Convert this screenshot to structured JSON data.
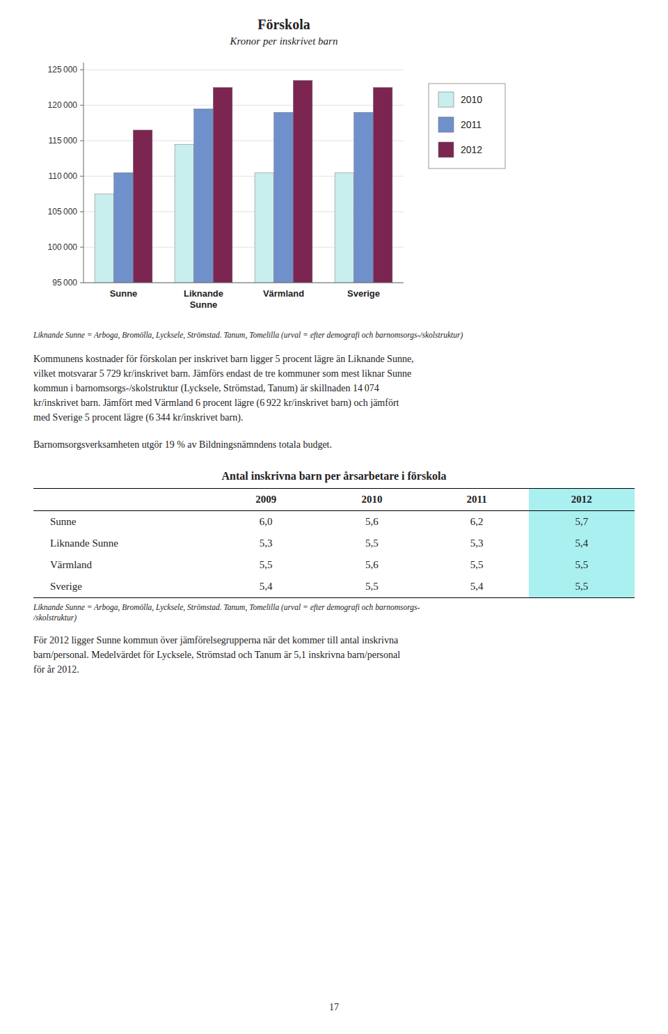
{
  "chart_data": [
    {
      "type": "bar",
      "title": "Förskola",
      "subtitle": "Kronor per inskrivet barn",
      "categories": [
        "Sunne",
        "Liknande\nSunne",
        "Värmland",
        "Sverige"
      ],
      "series": [
        {
          "name": "2010",
          "color": "#c8eeee",
          "values": [
            107500,
            114500,
            110500,
            110500
          ]
        },
        {
          "name": "2011",
          "color": "#7090cc",
          "values": [
            110500,
            119500,
            119000,
            119000
          ]
        },
        {
          "name": "2012",
          "color": "#7b2550",
          "values": [
            116500,
            122500,
            123500,
            122500
          ]
        }
      ],
      "ylim": [
        95000,
        126000
      ],
      "yticks": [
        {
          "value": 95000,
          "label": "95 000"
        },
        {
          "value": 100000,
          "label": "100 000"
        },
        {
          "value": 105000,
          "label": "105 000"
        },
        {
          "value": 110000,
          "label": "110 000"
        },
        {
          "value": 115000,
          "label": "115 000"
        },
        {
          "value": 120000,
          "label": "120 000"
        },
        {
          "value": 125000,
          "label": "125 000"
        }
      ],
      "grid": true,
      "legend": "right",
      "footnote": "Liknande Sunne = Arboga, Bromölla, Lycksele, Strömstad. Tanum, Tomelilla (urval = efter demografi och barnomsorgs-/skolstruktur)",
      "annotations": [
        "Kommunens kostnader för förskolan per inskrivet barn ligger 5 procent lägre än Liknande Sunne,",
        "vilket motsvarar 5 729 kr/inskrivet barn. Jämförs endast de tre kommuner som mest liknar Sunne",
        "kommun i barnomsorgs-/skolstruktur (Lycksele, Strömstad, Tanum) är skillnaden 14 074",
        "kr/inskrivet barn. Jämfört med Värmland 6 procent lägre (6 922 kr/inskrivet barn) och jämfört",
        "med Sverige 5 procent lägre (6 344 kr/inskrivet barn).",
        "Barnomsorgsverksamheten utgör 19 % av Bildningsnämndens totala budget."
      ]
    },
    {
      "type": "table",
      "title": "Antal inskrivna barn per årsarbetare i förskola",
      "categories": [
        "Sunne",
        "Liknande Sunne",
        "Värmland",
        "Sverige"
      ],
      "series": [
        {
          "name": "2009",
          "values": [
            6.0,
            5.3,
            5.5,
            5.4
          ],
          "value_labels": [
            "6,0",
            "5,3",
            "5,5",
            "5,4"
          ]
        },
        {
          "name": "2010",
          "values": [
            5.6,
            5.5,
            5.6,
            5.5
          ],
          "value_labels": [
            "5,6",
            "5,5",
            "5,6",
            "5,5"
          ]
        },
        {
          "name": "2011",
          "values": [
            6.2,
            5.3,
            5.5,
            5.4
          ],
          "value_labels": [
            "6,2",
            "5,3",
            "5,5",
            "5,4"
          ]
        },
        {
          "name": "2012",
          "color": "#aaf0f0",
          "values": [
            5.7,
            5.4,
            5.5,
            5.5
          ],
          "value_labels": [
            "5,7",
            "5,4",
            "5,5",
            "5,5"
          ]
        }
      ],
      "footnote": "Liknande Sunne = Arboga, Bromölla, Lycksele, Strömstad. Tanum, Tomelilla (urval = efter demografi och barnomsorgs-\n/skolstruktur)",
      "annotations": [
        "För 2012 ligger Sunne kommun över jämförelsegrupperna när det kommer till antal inskrivna",
        "barn/personal. Medelvärdet för Lycksele, Strömstad och Tanum är 5,1 inskrivna barn/personal",
        "för år 2012."
      ]
    }
  ],
  "page_number": "17"
}
